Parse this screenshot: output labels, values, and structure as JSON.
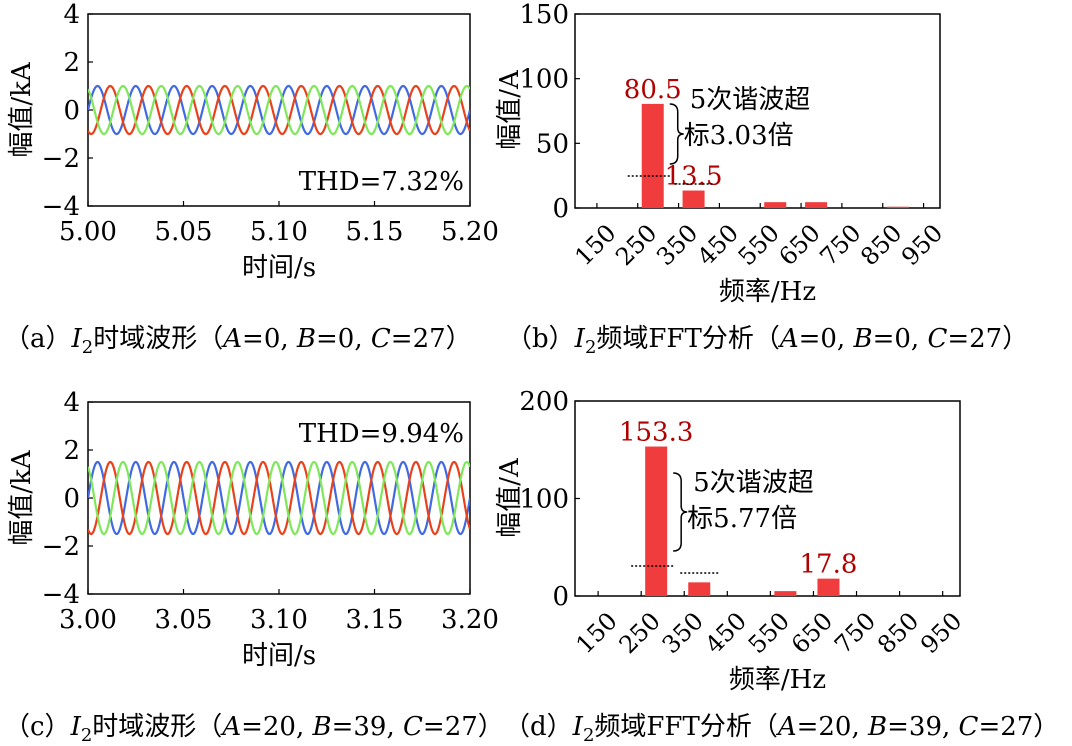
{
  "chart_data": [
    {
      "id": "a",
      "type": "line",
      "title": "",
      "xlabel": "时间/s",
      "ylabel": "幅值/kA",
      "xlim": [
        5.0,
        5.2
      ],
      "ylim": [
        -4,
        4
      ],
      "xticks": [
        "5.00",
        "5.05",
        "5.10",
        "5.15",
        "5.20"
      ],
      "yticks": [
        "4",
        "2",
        "0",
        "−2",
        "−4"
      ],
      "annotation": "THD=7.32%",
      "series": [
        {
          "name": "phase-a",
          "color": "#4169e1",
          "amplitude": 1.0,
          "frequency_hz": 50,
          "phase_deg": 0
        },
        {
          "name": "phase-b",
          "color": "#e8421c",
          "amplitude": 1.0,
          "frequency_hz": 50,
          "phase_deg": -120
        },
        {
          "name": "phase-c",
          "color": "#7ee85a",
          "amplitude": 1.0,
          "frequency_hz": 50,
          "phase_deg": 120
        }
      ],
      "caption": {
        "prefix": "（a）",
        "symbol": "I",
        "sub": "2",
        "text": "时域波形（",
        "params": [
          [
            "A",
            "=0, "
          ],
          [
            "B",
            "=0, "
          ],
          [
            "C",
            "=27）"
          ]
        ]
      }
    },
    {
      "id": "b",
      "type": "bar",
      "title": "",
      "xlabel": "频率/Hz",
      "ylabel": "幅值/A",
      "ylim": [
        0,
        150
      ],
      "yticks": [
        "150",
        "100",
        "50",
        "0"
      ],
      "categories": [
        "150",
        "250",
        "350",
        "450",
        "550",
        "650",
        "750",
        "850",
        "950"
      ],
      "values": [
        0,
        80.5,
        13.5,
        0,
        4.5,
        4.5,
        0,
        1,
        0
      ],
      "value_labels": [
        {
          "index": 1,
          "text": "80.5"
        },
        {
          "index": 2,
          "text": "13.5"
        }
      ],
      "annotation": {
        "line1": "5次谐波超",
        "line2": "标3.03倍"
      },
      "caption": {
        "prefix": "（b）",
        "symbol": "I",
        "sub": "2",
        "text": "频域FFT分析（",
        "params": [
          [
            "A",
            "=0, "
          ],
          [
            "B",
            "=0, "
          ],
          [
            "C",
            "=27）"
          ]
        ]
      }
    },
    {
      "id": "c",
      "type": "line",
      "title": "",
      "xlabel": "时间/s",
      "ylabel": "幅值/kA",
      "xlim": [
        3.0,
        3.2
      ],
      "ylim": [
        -4,
        4
      ],
      "xticks": [
        "3.00",
        "3.05",
        "3.10",
        "3.15",
        "3.20"
      ],
      "yticks": [
        "4",
        "2",
        "0",
        "−2",
        "−4"
      ],
      "annotation": "THD=9.94%",
      "series": [
        {
          "name": "phase-a",
          "color": "#4169e1",
          "amplitude": 1.5,
          "frequency_hz": 50,
          "phase_deg": 0
        },
        {
          "name": "phase-b",
          "color": "#e8421c",
          "amplitude": 1.5,
          "frequency_hz": 50,
          "phase_deg": -120
        },
        {
          "name": "phase-c",
          "color": "#7ee85a",
          "amplitude": 1.5,
          "frequency_hz": 50,
          "phase_deg": 120
        }
      ],
      "caption": {
        "prefix": "（c）",
        "symbol": "I",
        "sub": "2",
        "text": "时域波形（",
        "params": [
          [
            "A",
            "=20, "
          ],
          [
            "B",
            "=39, "
          ],
          [
            "C",
            "=27）"
          ]
        ]
      }
    },
    {
      "id": "d",
      "type": "bar",
      "title": "",
      "xlabel": "频率/Hz",
      "ylabel": "幅值/A",
      "ylim": [
        0,
        200
      ],
      "yticks": [
        "200",
        "100",
        "0"
      ],
      "categories": [
        "150",
        "250",
        "350",
        "450",
        "550",
        "650",
        "750",
        "850",
        "950"
      ],
      "values": [
        0,
        153.3,
        14,
        0,
        5,
        17.8,
        0,
        0,
        0
      ],
      "value_labels": [
        {
          "index": 1,
          "text": "153.3"
        },
        {
          "index": 5,
          "text": "17.8"
        }
      ],
      "annotation": {
        "line1": "5次谐波超",
        "line2": "标5.77倍"
      },
      "caption": {
        "prefix": "（d）",
        "symbol": "I",
        "sub": "2",
        "text": "频域FFT分析（",
        "params": [
          [
            "A",
            "=20, "
          ],
          [
            "B",
            "=39, "
          ],
          [
            "C",
            "=27）"
          ]
        ]
      }
    }
  ],
  "colors": {
    "bar": "#f03c3c",
    "value_label": "#b00000",
    "axis": "#000000"
  }
}
